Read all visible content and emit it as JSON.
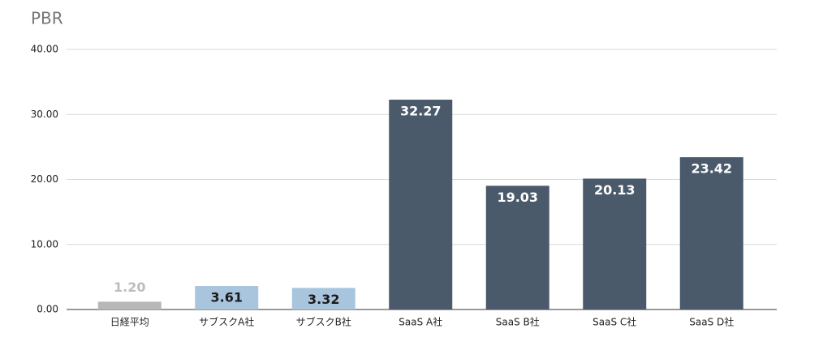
{
  "chart_data": {
    "type": "bar",
    "title": "PBR",
    "categories": [
      "日経平均",
      "サブスクA社",
      "サブスクB社",
      "SaaS A社",
      "SaaS B社",
      "SaaS C社",
      "SaaS D社"
    ],
    "values": [
      1.2,
      3.61,
      3.32,
      32.27,
      19.03,
      20.13,
      23.42
    ],
    "value_labels": [
      "1.20",
      "3.61",
      "3.32",
      "32.27",
      "19.03",
      "20.13",
      "23.42"
    ],
    "colors": [
      "#b7b7b7",
      "#a9c5de",
      "#a9c5de",
      "#4a5a6b",
      "#4a5a6b",
      "#4a5a6b",
      "#4a5a6b"
    ],
    "label_colors": [
      "#bdbdbd",
      "#1a1a1a",
      "#1a1a1a",
      "#ffffff",
      "#ffffff",
      "#ffffff",
      "#ffffff"
    ],
    "ylim": [
      0,
      40
    ],
    "yticks": [
      {
        "value": 0,
        "label": "0.00"
      },
      {
        "value": 10,
        "label": "10.00"
      },
      {
        "value": 20,
        "label": "20.00"
      },
      {
        "value": 30,
        "label": "30.00"
      },
      {
        "value": 40,
        "label": "40.00"
      }
    ],
    "grid": true
  }
}
